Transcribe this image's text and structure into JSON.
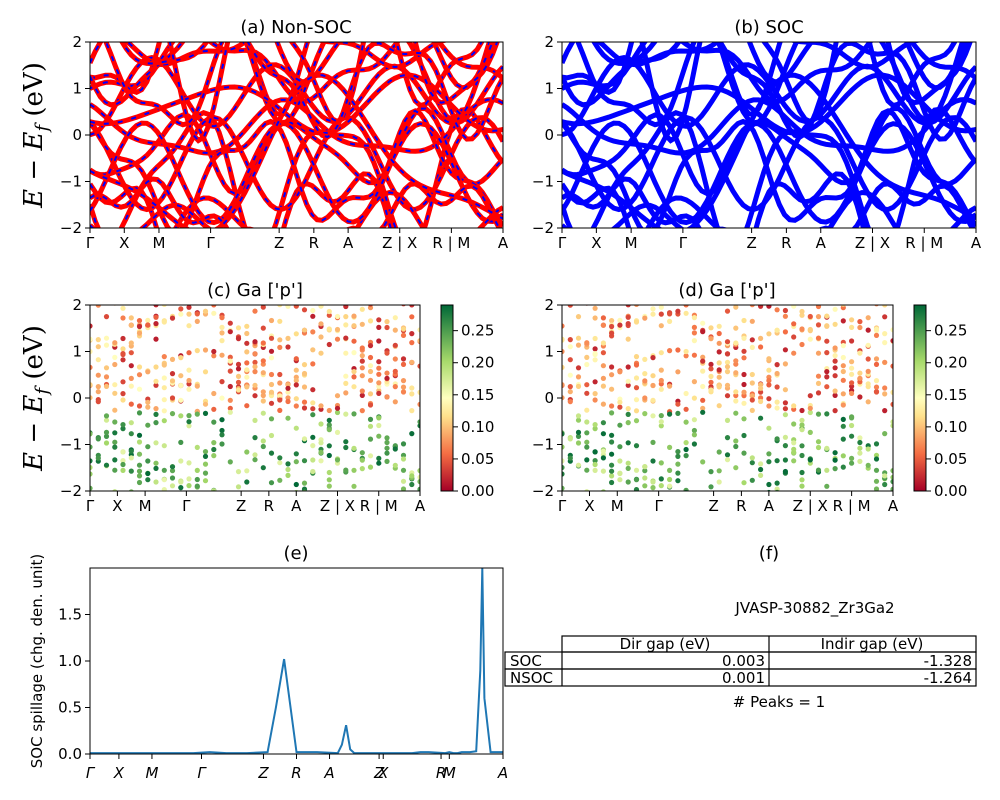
{
  "colors": {
    "red": "#ff0000",
    "blue": "#0000ff",
    "spillage": "#1f77b4",
    "axis": "#000000"
  },
  "ylabel_band": "E − E_f (eV)",
  "kpath": [
    "Γ",
    "X",
    "M",
    "Γ",
    "Z",
    "R",
    "A",
    "Z | X",
    "R | M",
    "A"
  ],
  "kpath_italic": [
    "Γ",
    "X",
    "M",
    "Γ",
    "Z",
    "R",
    "A",
    "Z",
    "X",
    "R",
    "M",
    "A"
  ],
  "panels": {
    "a": {
      "title": "(a) Non-SOC"
    },
    "b": {
      "title": "(b) SOC"
    },
    "c": {
      "title": "(c)  Ga ['p']"
    },
    "d": {
      "title": "(d) Ga ['p']"
    },
    "e": {
      "title": "(e)"
    },
    "f": {
      "title": "(f)"
    }
  },
  "colorbar": {
    "ticks": [
      "0.00",
      "0.05",
      "0.10",
      "0.15",
      "0.20",
      "0.25"
    ],
    "cmap": "RdYlGn"
  },
  "table": {
    "material": "JVASP-30882_Zr3Ga2",
    "headers": [
      "Dir gap (eV)",
      "Indir gap (eV)"
    ],
    "rows": [
      {
        "label": "SOC",
        "dir": "0.003",
        "indir": "-1.328"
      },
      {
        "label": "NSOC",
        "dir": "0.001",
        "indir": "-1.264"
      }
    ],
    "peaks": "# Peaks = 1"
  },
  "chart_data": [
    {
      "type": "line",
      "title": "(a) Non-SOC",
      "ylabel": "E − E_f (eV)",
      "ylim": [
        -2,
        2
      ],
      "yticks": [
        "−2",
        "−1",
        "0",
        "1",
        "2"
      ],
      "xticks": [
        "Γ",
        "X",
        "M",
        "Γ",
        "Z",
        "R",
        "A",
        "Z | X",
        "R | M",
        "A"
      ],
      "series": [
        {
          "name": "Non-SOC bands",
          "color": "#ff0000"
        }
      ]
    },
    {
      "type": "line",
      "title": "(b) SOC",
      "ylim": [
        -2,
        2
      ],
      "yticks": [
        "−2",
        "−1",
        "0",
        "1",
        "2"
      ],
      "xticks": [
        "Γ",
        "X",
        "M",
        "Γ",
        "Z",
        "R",
        "A",
        "Z | X",
        "R | M",
        "A"
      ],
      "series": [
        {
          "name": "SOC bands",
          "color": "#0000ff"
        }
      ]
    },
    {
      "type": "scatter",
      "title": "(c)  Ga ['p']",
      "ylabel": "E − E_f (eV)",
      "ylim": [
        -2,
        2
      ],
      "yticks": [
        "−2",
        "−1",
        "0",
        "1",
        "2"
      ],
      "colorbar_range": [
        0,
        0.29
      ]
    },
    {
      "type": "scatter",
      "title": "(d) Ga ['p']",
      "ylim": [
        -2,
        2
      ],
      "yticks": [
        "−2",
        "−1",
        "0",
        "1",
        "2"
      ],
      "colorbar_range": [
        0,
        0.29
      ]
    },
    {
      "type": "line",
      "title": "(e)",
      "ylabel": "SOC spillage (chg. den. unit)",
      "ylim": [
        0,
        2.0
      ],
      "yticks": [
        "0.0",
        "0.5",
        "1.0",
        "1.5"
      ],
      "xticks": [
        "Γ",
        "X",
        "M",
        "Γ",
        "Z",
        "R",
        "A",
        "Z",
        "X",
        "R",
        "M",
        "A"
      ],
      "x": [
        0,
        0.05,
        0.1,
        0.15,
        0.2,
        0.25,
        0.29,
        0.33,
        0.38,
        0.43,
        0.45,
        0.47,
        0.5,
        0.55,
        0.6,
        0.61,
        0.62,
        0.63,
        0.64,
        0.66,
        0.7,
        0.74,
        0.78,
        0.8,
        0.82,
        0.86,
        0.87,
        0.88,
        0.89,
        0.9,
        0.92,
        0.935,
        0.945,
        0.95,
        0.955,
        0.97,
        1.0
      ],
      "values": [
        0.01,
        0.01,
        0.01,
        0.01,
        0.01,
        0.01,
        0.02,
        0.01,
        0.01,
        0.02,
        0.5,
        1.02,
        0.02,
        0.02,
        0.01,
        0.1,
        0.31,
        0.05,
        0.01,
        0.01,
        0.01,
        0.01,
        0.01,
        0.02,
        0.02,
        0.01,
        0.02,
        0.01,
        0.01,
        0.02,
        0.02,
        0.03,
        0.9,
        2.0,
        0.6,
        0.02,
        0.02
      ]
    }
  ]
}
